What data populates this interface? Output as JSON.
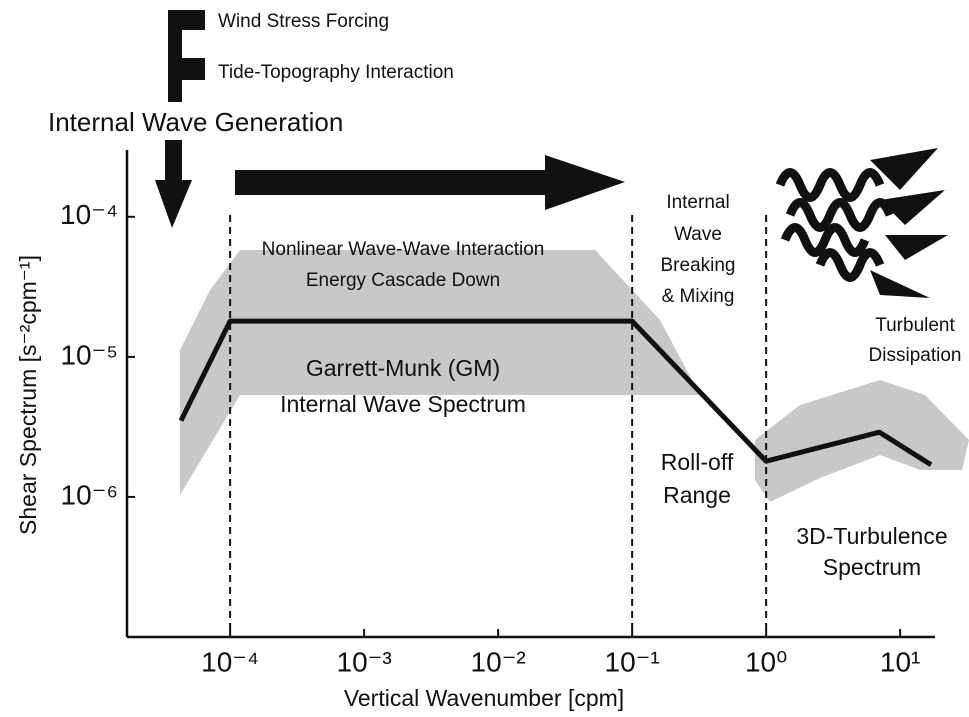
{
  "chart_data": {
    "type": "line",
    "xlabel": "Vertical Wavenumber [cpm]",
    "ylabel": "Shear Spectrum [s⁻²cpm⁻¹]",
    "xscale": "log",
    "yscale": "log",
    "x": [
      4.3e-05,
      0.0001,
      0.1,
      1,
      7,
      17
    ],
    "values": [
      3.5e-06,
      1.8e-05,
      1.8e-05,
      1.8e-06,
      2.9e-06,
      1.7e-06
    ],
    "color": "#111111",
    "xlim": [
      1.7e-05,
      18.2
    ],
    "ylim": [
      1e-07,
      0.0003
    ],
    "xticks": [
      {
        "value": 0.0001,
        "label": "10⁻⁴"
      },
      {
        "value": 0.001,
        "label": "10⁻³"
      },
      {
        "value": 0.01,
        "label": "10⁻²"
      },
      {
        "value": 0.1,
        "label": "10⁻¹"
      },
      {
        "value": 1,
        "label": "10⁰"
      },
      {
        "value": 10,
        "label": "10¹"
      }
    ],
    "yticks": [
      {
        "value": 0.0001,
        "label": "10⁻⁴"
      },
      {
        "value": 1e-05,
        "label": "10⁻⁵"
      },
      {
        "value": 1e-06,
        "label": "10⁻⁶"
      }
    ],
    "dividers": [
      0.0001,
      0.1,
      1
    ],
    "annotations": [
      {
        "lines": [
          "Wind Stress Forcing"
        ]
      },
      {
        "lines": [
          "Tide-Topography Interaction"
        ]
      },
      {
        "lines": [
          "Internal Wave Generation"
        ]
      },
      {
        "lines": [
          "Nonlinear Wave-Wave Interaction",
          "Energy Cascade Down"
        ]
      },
      {
        "lines": [
          "Garrett-Munk (GM)",
          "Internal Wave Spectrum"
        ]
      },
      {
        "lines": [
          "Internal",
          "Wave",
          "Breaking",
          "& Mixing"
        ]
      },
      {
        "lines": [
          "Roll-off",
          "Range"
        ]
      },
      {
        "lines": [
          "Turbulent",
          "Dissipation"
        ]
      },
      {
        "lines": [
          "3D-Turbulence",
          "Spectrum"
        ]
      }
    ]
  }
}
